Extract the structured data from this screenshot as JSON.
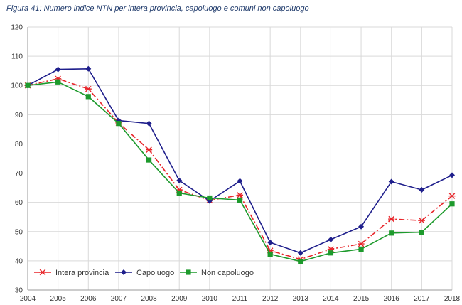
{
  "caption": "Figura 41: Numero indice NTN per intera provincia, capoluogo e comuni non capoluogo",
  "chart_data": {
    "type": "line",
    "title": "Figura 41: Numero indice NTN per intera provincia, capoluogo e comuni non capoluogo",
    "xlabel": "",
    "ylabel": "",
    "x": [
      "2004",
      "2005",
      "2006",
      "2007",
      "2008",
      "2009",
      "2010",
      "2011",
      "2012",
      "2013",
      "2014",
      "2015",
      "2016",
      "2017",
      "2018"
    ],
    "ylim": [
      30,
      120
    ],
    "yticks": [
      30,
      40,
      50,
      60,
      70,
      80,
      90,
      100,
      110,
      120
    ],
    "grid": true,
    "legend_position": "bottom-left",
    "series": [
      {
        "name": "Intera provincia",
        "color": "#e8252a",
        "style": "dashdot",
        "marker": "asterisk",
        "values": [
          100,
          102.3,
          98.8,
          87.2,
          78,
          64.3,
          60.7,
          62.5,
          43.5,
          40.5,
          44,
          45.8,
          54.3,
          53.8,
          62.2
        ]
      },
      {
        "name": "Capoluogo",
        "color": "#1f1f8c",
        "style": "solid",
        "marker": "diamond",
        "values": [
          100,
          105.5,
          105.7,
          88,
          87,
          67.5,
          60.5,
          67.3,
          46.3,
          42.7,
          47.3,
          51.7,
          67.1,
          64.3,
          69.3
        ]
      },
      {
        "name": "Non capoluogo",
        "color": "#1d9a2c",
        "style": "solid",
        "marker": "square",
        "values": [
          100,
          101.2,
          96.2,
          87,
          74.5,
          63.2,
          61.5,
          60.8,
          42.3,
          39.8,
          42.7,
          44,
          49.5,
          49.8,
          59.5
        ]
      }
    ]
  }
}
